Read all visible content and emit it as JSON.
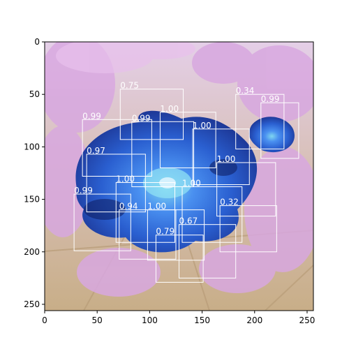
{
  "image": {
    "width": 256,
    "height": 256,
    "description_colors": {
      "background_top": "#e6c8e6",
      "tile_floor": "#c8b08a",
      "leaves": "#d8a8e0",
      "petal_dark": "#1a2f8a",
      "petal_mid": "#2a5fd0",
      "petal_light": "#4a90f0",
      "center": "#7fd6f0",
      "box_stroke": "#ffffff"
    }
  },
  "axes": {
    "x_ticks": [
      "0",
      "50",
      "100",
      "150",
      "200",
      "250"
    ],
    "y_ticks": [
      "0",
      "50",
      "100",
      "150",
      "200",
      "250"
    ]
  },
  "detections": [
    {
      "label": "0.75",
      "x0": 72,
      "y0": 45,
      "x1": 132,
      "y1": 93
    },
    {
      "label": "0.34",
      "x0": 182,
      "y0": 50,
      "x1": 228,
      "y1": 102
    },
    {
      "label": "0.99",
      "x0": 206,
      "y0": 58,
      "x1": 242,
      "y1": 111
    },
    {
      "label": "0.99",
      "x0": 36,
      "y0": 74,
      "x1": 102,
      "y1": 128
    },
    {
      "label": "0.99",
      "x0": 83,
      "y0": 76,
      "x1": 142,
      "y1": 138
    },
    {
      "label": "1.00",
      "x0": 110,
      "y0": 67,
      "x1": 163,
      "y1": 120
    },
    {
      "label": "1.00",
      "x0": 141,
      "y0": 83,
      "x1": 195,
      "y1": 136
    },
    {
      "label": "0.97",
      "x0": 40,
      "y0": 107,
      "x1": 96,
      "y1": 162
    },
    {
      "label": "1.00",
      "x0": 164,
      "y0": 115,
      "x1": 220,
      "y1": 166
    },
    {
      "label": "0.99",
      "x0": 28,
      "y0": 145,
      "x1": 82,
      "y1": 199
    },
    {
      "label": "1.00",
      "x0": 68,
      "y0": 134,
      "x1": 124,
      "y1": 191
    },
    {
      "label": "1.00",
      "x0": 131,
      "y0": 138,
      "x1": 188,
      "y1": 191
    },
    {
      "label": "0.32",
      "x0": 167,
      "y0": 156,
      "x1": 221,
      "y1": 200
    },
    {
      "label": "0.94",
      "x0": 71,
      "y0": 160,
      "x1": 125,
      "y1": 207
    },
    {
      "label": "1.00",
      "x0": 98,
      "y0": 160,
      "x1": 152,
      "y1": 208
    },
    {
      "label": "0.67",
      "x0": 128,
      "y0": 174,
      "x1": 182,
      "y1": 225
    },
    {
      "label": "0.79",
      "x0": 106,
      "y0": 184,
      "x1": 151,
      "y1": 229
    }
  ]
}
